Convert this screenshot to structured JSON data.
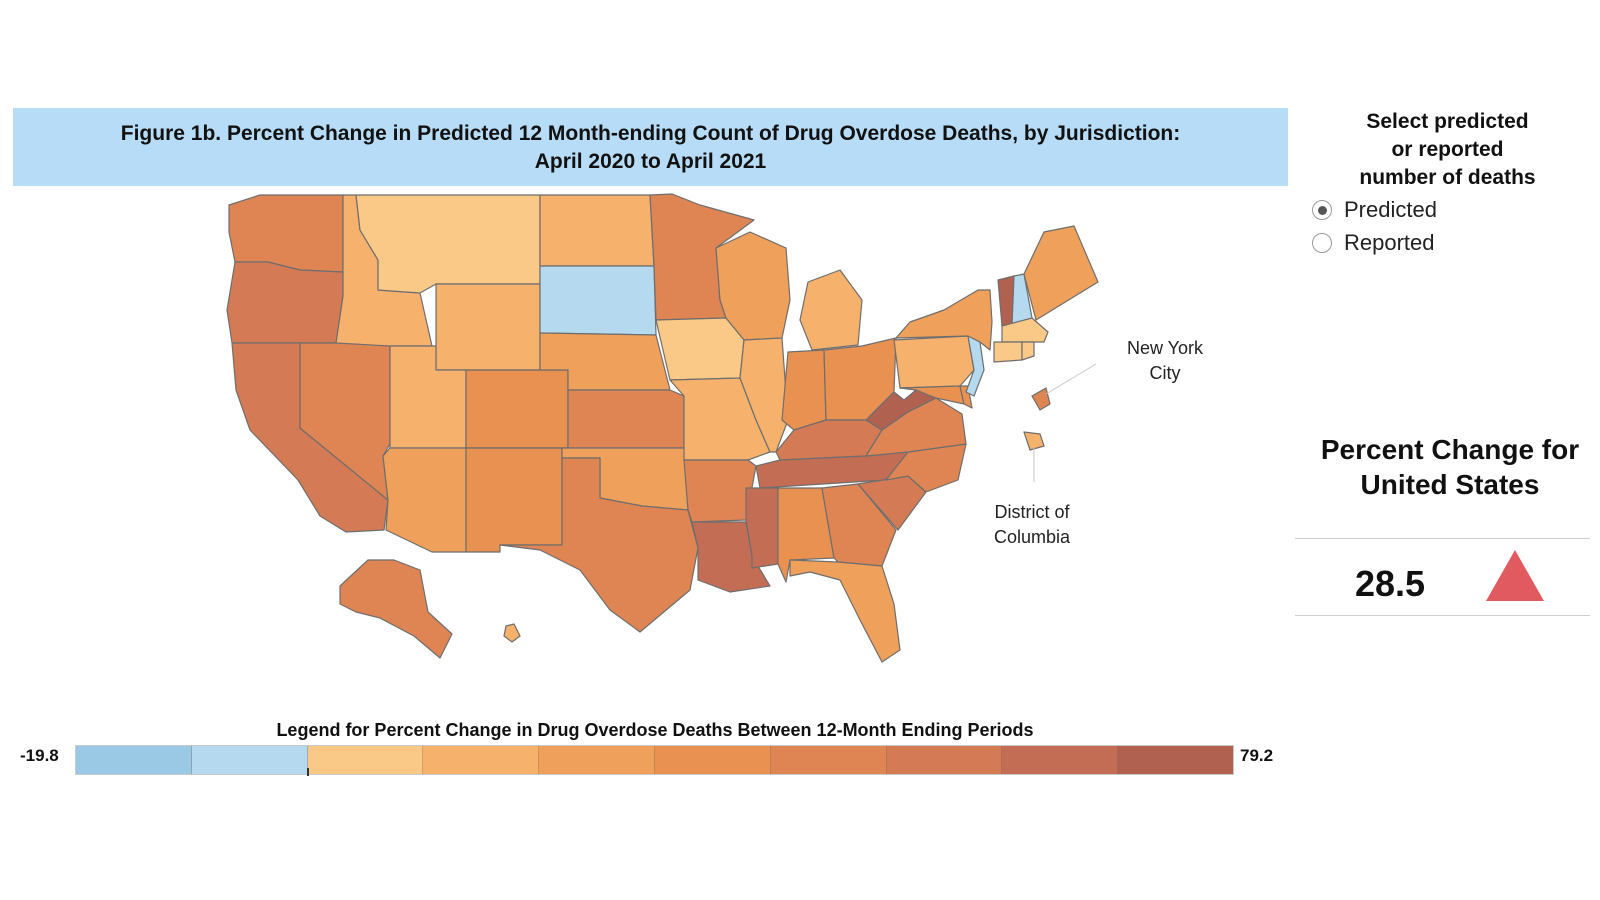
{
  "figure": {
    "title_line1": "Figure 1b. Percent Change in Predicted 12 Month-ending Count of Drug Overdose Deaths, by Jurisdiction:",
    "title_line2": "April 2020 to April 2021"
  },
  "colors": {
    "title_band": "#b7dcf7",
    "state_border": "#6e6e6e",
    "triangle": "#e05a5f"
  },
  "map": {
    "annotations": {
      "nyc_line1": "New York",
      "nyc_line2": "City",
      "dc_line1": "District of",
      "dc_line2": "Columbia"
    },
    "jurisdictions": [
      {
        "id": "WA",
        "bin": 6
      },
      {
        "id": "OR",
        "bin": 7
      },
      {
        "id": "CA",
        "bin": 7
      },
      {
        "id": "NV",
        "bin": 6
      },
      {
        "id": "ID",
        "bin": 3
      },
      {
        "id": "MT",
        "bin": 2
      },
      {
        "id": "WY",
        "bin": 3
      },
      {
        "id": "UT",
        "bin": 3
      },
      {
        "id": "AZ",
        "bin": 4
      },
      {
        "id": "CO",
        "bin": 5
      },
      {
        "id": "NM",
        "bin": 5
      },
      {
        "id": "ND",
        "bin": 3
      },
      {
        "id": "SD",
        "bin": 1
      },
      {
        "id": "NE",
        "bin": 4
      },
      {
        "id": "KS",
        "bin": 6
      },
      {
        "id": "OK",
        "bin": 4
      },
      {
        "id": "TX",
        "bin": 6
      },
      {
        "id": "MN",
        "bin": 6
      },
      {
        "id": "IA",
        "bin": 2
      },
      {
        "id": "MO",
        "bin": 3
      },
      {
        "id": "AR",
        "bin": 6
      },
      {
        "id": "LA",
        "bin": 8
      },
      {
        "id": "WI",
        "bin": 4
      },
      {
        "id": "IL",
        "bin": 3
      },
      {
        "id": "MI",
        "bin": 3
      },
      {
        "id": "IN",
        "bin": 5
      },
      {
        "id": "OH",
        "bin": 5
      },
      {
        "id": "KY",
        "bin": 7
      },
      {
        "id": "TN",
        "bin": 8
      },
      {
        "id": "MS",
        "bin": 8
      },
      {
        "id": "AL",
        "bin": 5
      },
      {
        "id": "GA",
        "bin": 6
      },
      {
        "id": "FL",
        "bin": 4
      },
      {
        "id": "SC",
        "bin": 7
      },
      {
        "id": "NC",
        "bin": 6
      },
      {
        "id": "VA",
        "bin": 6
      },
      {
        "id": "WV",
        "bin": 9
      },
      {
        "id": "PA",
        "bin": 3
      },
      {
        "id": "NY",
        "bin": 4
      },
      {
        "id": "VT",
        "bin": 9
      },
      {
        "id": "NH",
        "bin": 1
      },
      {
        "id": "ME",
        "bin": 4
      },
      {
        "id": "MA",
        "bin": 2
      },
      {
        "id": "CT",
        "bin": 2
      },
      {
        "id": "RI",
        "bin": 2
      },
      {
        "id": "NJ",
        "bin": 1
      },
      {
        "id": "DE",
        "bin": 5
      },
      {
        "id": "MD",
        "bin": 5
      },
      {
        "id": "NYC",
        "bin": 6
      },
      {
        "id": "DC",
        "bin": 3
      },
      {
        "id": "AK",
        "bin": 6
      },
      {
        "id": "HI",
        "bin": 3
      }
    ]
  },
  "selector": {
    "title_line1": "Select predicted",
    "title_line2": "or reported",
    "title_line3": "number of deaths",
    "option_predicted": "Predicted",
    "option_reported": "Reported",
    "selected": "Predicted"
  },
  "us_summary": {
    "title_line1": "Percent Change for",
    "title_line2": "United States",
    "value": "28.5",
    "direction": "up"
  },
  "legend": {
    "title": "Legend for Percent Change in Drug Overdose Deaths Between 12-Month Ending Periods",
    "min_label": "-19.8",
    "max_label": "79.2",
    "bins": [
      "#9ac9e6",
      "#b5d9ee",
      "#fbc987",
      "#f6b16c",
      "#efa05a",
      "#e99150",
      "#df8553",
      "#d47a55",
      "#c46d55",
      "#b1614f"
    ]
  }
}
